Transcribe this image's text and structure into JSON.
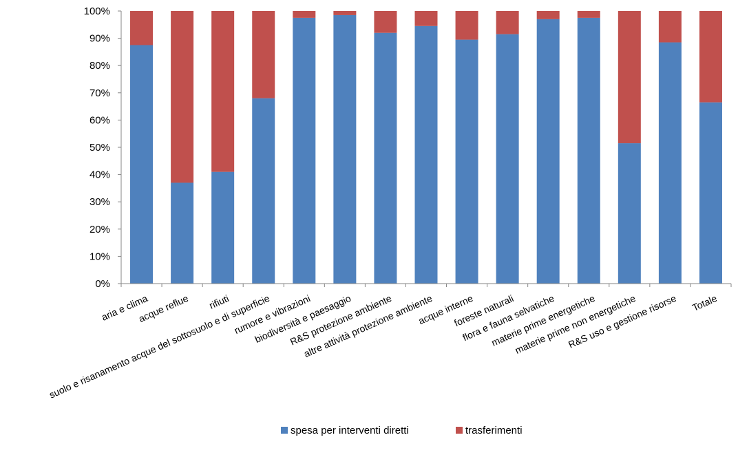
{
  "chart_data": {
    "type": "bar",
    "stacked": true,
    "normalized": true,
    "categories": [
      "aria e clima",
      "acque reflue",
      "rifiuti",
      "suolo e risanamento acque del sottosuolo e di superficie",
      "rumore e vibrazioni",
      "biodiversità e paesaggio",
      "R&S protezione ambiente",
      "altre attività protezione ambiente",
      "acque interne",
      "foreste naturali",
      "flora e fauna selvatiche",
      "materie prime energetiche",
      "materie prime non energetiche",
      "R&S uso e gestione risorse",
      "Totale"
    ],
    "series": [
      {
        "name": "spesa per interventi diretti",
        "color": "#4F81BD",
        "values": [
          87.5,
          37,
          41,
          68,
          97.5,
          98.5,
          92,
          94.5,
          89.5,
          91.5,
          97,
          97.5,
          51.5,
          88.5,
          66.5
        ]
      },
      {
        "name": "trasferimenti",
        "color": "#C0504D",
        "values": [
          12.5,
          63,
          59,
          32,
          2.5,
          1.5,
          8,
          5.5,
          10.5,
          8.5,
          3,
          2.5,
          48.5,
          11.5,
          33.5
        ]
      }
    ],
    "yticks": [
      "0%",
      "10%",
      "20%",
      "30%",
      "40%",
      "50%",
      "60%",
      "70%",
      "80%",
      "90%",
      "100%"
    ],
    "ylim": [
      0,
      100
    ],
    "title": "",
    "xlabel": "",
    "ylabel": "",
    "legend_position": "bottom",
    "grid": false
  }
}
